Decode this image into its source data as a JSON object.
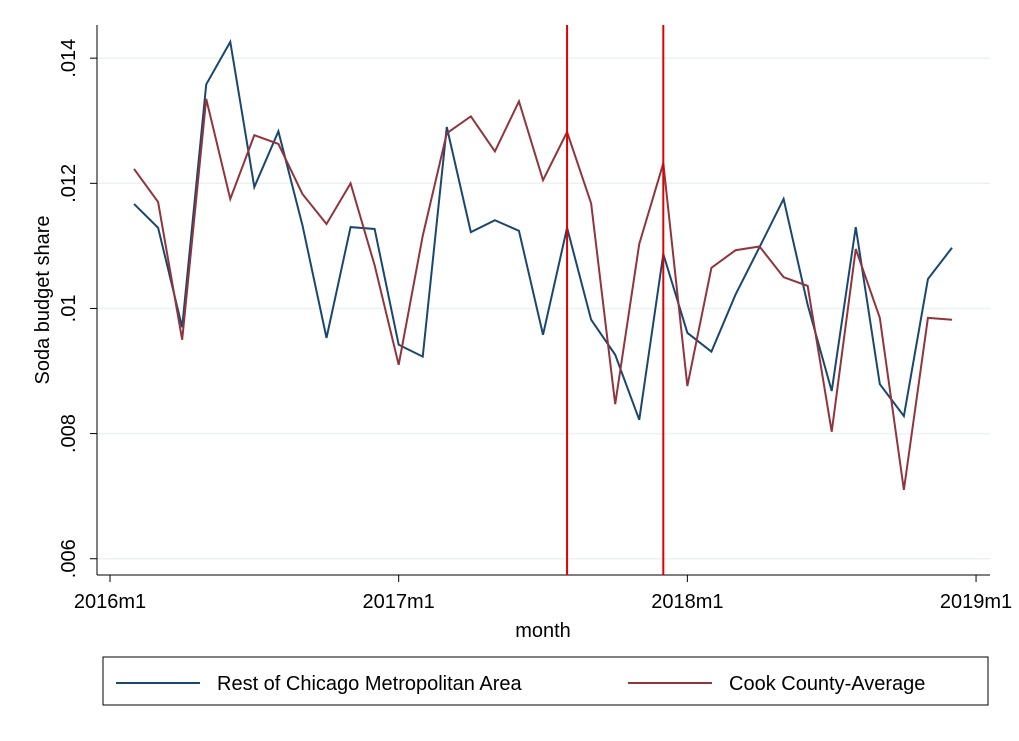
{
  "chart_data": {
    "type": "line",
    "xlabel": "month",
    "ylabel": "Soda budget share",
    "x": [
      673,
      674,
      675,
      676,
      677,
      678,
      679,
      680,
      681,
      682,
      683,
      684,
      685,
      686,
      687,
      688,
      689,
      690,
      691,
      692,
      693,
      694,
      695,
      696,
      697,
      698,
      699,
      700,
      701,
      702,
      703,
      704,
      705,
      706,
      707
    ],
    "series": [
      {
        "name": "Rest of Chicago Metropolitan Area",
        "color": "#1a476f",
        "values": [
          0.01167,
          0.01129,
          0.0097,
          0.01358,
          0.01426,
          0.01194,
          0.01283,
          0.01133,
          0.00953,
          0.0113,
          0.01127,
          0.00942,
          0.00923,
          0.0129,
          0.01122,
          0.01141,
          0.01124,
          0.00958,
          0.01129,
          0.00982,
          0.00926,
          0.00822,
          0.01087,
          0.00961,
          0.00931,
          0.01022,
          0.01098,
          0.01175,
          0.01006,
          0.00868,
          0.0113,
          0.00879,
          0.00828,
          0.01047,
          0.01097
        ]
      },
      {
        "name": "Cook County-Average",
        "color": "#90353b",
        "values": [
          0.01223,
          0.0117,
          0.0095,
          0.01335,
          0.01175,
          0.01277,
          0.01263,
          0.01183,
          0.01135,
          0.012,
          0.01069,
          0.0091,
          0.01116,
          0.0128,
          0.01307,
          0.01251,
          0.01331,
          0.01205,
          0.01282,
          0.01168,
          0.00847,
          0.01103,
          0.01232,
          0.00876,
          0.01065,
          0.01093,
          0.01099,
          0.0105,
          0.01036,
          0.00803,
          0.01095,
          0.00985,
          0.0071,
          0.00985,
          0.00982
        ]
      }
    ],
    "vlines": [
      691,
      695
    ],
    "vline_color": "#e00000",
    "xlim": [
      671.46,
      708.58
    ],
    "xticks": [
      {
        "value": 672,
        "label": "2016m1"
      },
      {
        "value": 684,
        "label": "2017m1"
      },
      {
        "value": 696,
        "label": "2018m1"
      },
      {
        "value": 708,
        "label": "2019m1"
      }
    ],
    "ylim": [
      0.00574,
      0.01453
    ],
    "yticks": [
      {
        "value": 0.006,
        "label": ".006"
      },
      {
        "value": 0.008,
        "label": ".008"
      },
      {
        "value": 0.01,
        "label": ".01"
      },
      {
        "value": 0.012,
        "label": ".012"
      },
      {
        "value": 0.014,
        "label": ".014"
      }
    ],
    "grid": true
  }
}
